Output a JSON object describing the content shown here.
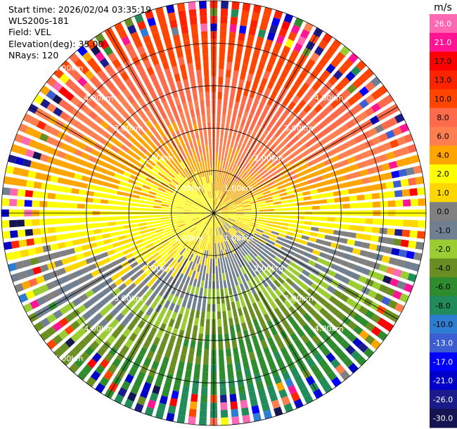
{
  "header": {
    "start_time": "Start time: 2026/02/04 03:35:19",
    "instrument": "WLS200s-181",
    "field": "Field: VEL",
    "elevation": "Elevation(deg): 35.00",
    "nrays": "NRays: 120"
  },
  "chart_data": {
    "type": "heatmap",
    "projection": "polar-ppi",
    "field": "VEL",
    "elevation_deg": 35.0,
    "nrays": 120,
    "range_km": [
      0,
      5.0
    ],
    "range_rings_km": [
      1.0,
      2.0,
      3.0,
      4.0,
      5.0
    ],
    "ring_label_texts": [
      "1.00km",
      "2.00km",
      "3.00km",
      "4.00km",
      "5.00km"
    ],
    "radial_lines_deg": [
      0,
      30,
      60,
      90,
      120,
      150,
      180,
      210,
      240,
      270,
      300,
      330
    ],
    "colorbar": {
      "unit": "m/s",
      "ticks": [
        "26.0",
        "21.0",
        "17.0",
        "13.0",
        "10.0",
        "8.0",
        "6.0",
        "4.0",
        "2.0",
        "1.0",
        "0.0",
        "-1.0",
        "-2.0",
        "-4.0",
        "-6.0",
        "-8.0",
        "-10.0",
        "-13.0",
        "-17.0",
        "-21.0",
        "-26.0",
        "-30.0"
      ],
      "levels": [
        -30,
        -26,
        -21,
        -17,
        -13,
        -10,
        -8,
        -6,
        -4,
        -2,
        -1,
        0,
        1,
        2,
        4,
        6,
        8,
        10,
        13,
        17,
        21,
        26,
        30
      ],
      "colors": [
        "#141450",
        "#1b1b8c",
        "#0000c8",
        "#0000ff",
        "#3c5ed0",
        "#2d7dd2",
        "#228b5a",
        "#2e8b2e",
        "#6b8e23",
        "#9acd32",
        "#708090",
        "#808080",
        "#ffd700",
        "#ffff00",
        "#ffa500",
        "#ff7f50",
        "#ff6a4a",
        "#ff4500",
        "#ff2400",
        "#ff0000",
        "#ff1493",
        "#ff69b4"
      ]
    }
  }
}
